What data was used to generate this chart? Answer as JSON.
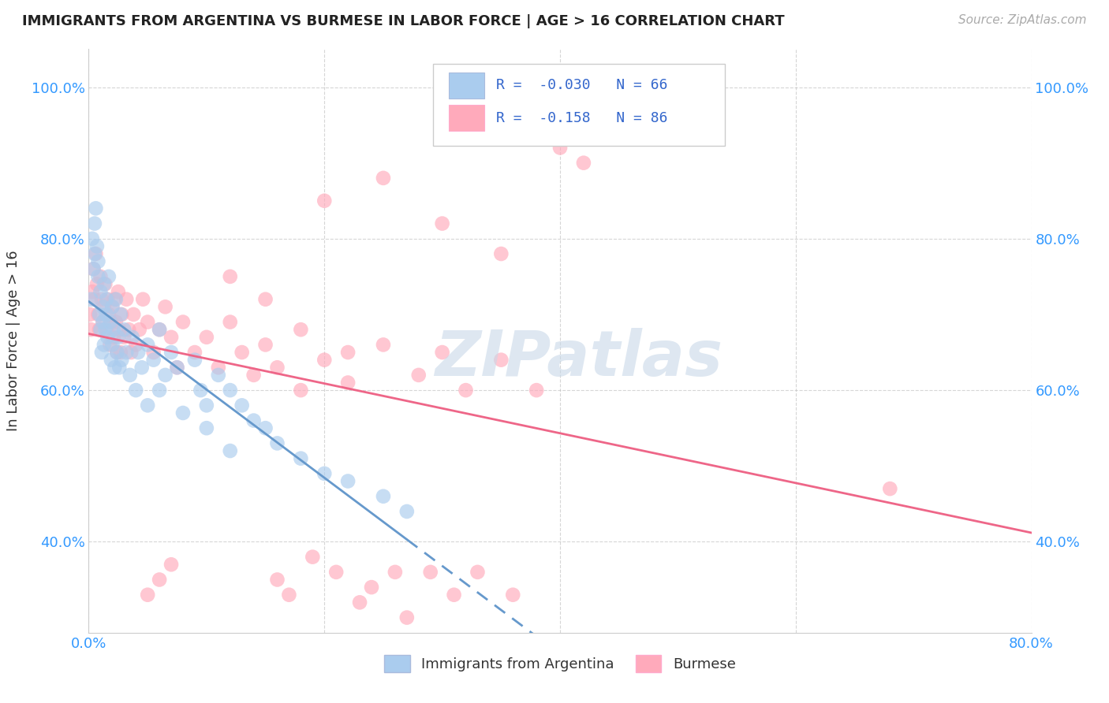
{
  "title": "IMMIGRANTS FROM ARGENTINA VS BURMESE IN LABOR FORCE | AGE > 16 CORRELATION CHART",
  "source": "Source: ZipAtlas.com",
  "ylabel": "In Labor Force | Age > 16",
  "watermark": "ZIPatlas",
  "legend1_label": "R =  -0.030   N = 66",
  "legend2_label": "R =  -0.158   N = 86",
  "legend_bottom1": "Immigrants from Argentina",
  "legend_bottom2": "Burmese",
  "xlim": [
    0.0,
    0.8
  ],
  "ylim": [
    0.28,
    1.05
  ],
  "xticks": [
    0.0,
    0.2,
    0.4,
    0.6,
    0.8
  ],
  "yticks": [
    0.4,
    0.6,
    0.8,
    1.0
  ],
  "xtick_labels": [
    "0.0%",
    "",
    "",
    "",
    "80.0%"
  ],
  "ytick_labels_left": [
    "40.0%",
    "60.0%",
    "80.0%",
    "100.0%"
  ],
  "ytick_labels_right": [
    "40.0%",
    "60.0%",
    "80.0%",
    "100.0%"
  ],
  "color_argentina": "#aaccee",
  "color_burmese": "#ffaabb",
  "line_color_argentina": "#6699cc",
  "line_color_burmese": "#ee6688",
  "background_color": "#ffffff",
  "grid_color": "#bbbbbb",
  "title_color": "#222222",
  "axis_label_color": "#333333",
  "tick_color": "#3399ff",
  "watermark_color": "#c8d8e8",
  "watermark_alpha": 0.6,
  "legend_box_color_argentina": "#aaccee",
  "legend_box_color_burmese": "#ffaabb",
  "legend_text_color": "#3366cc",
  "arg_x": [
    0.002,
    0.003,
    0.004,
    0.005,
    0.005,
    0.006,
    0.007,
    0.008,
    0.008,
    0.009,
    0.01,
    0.01,
    0.011,
    0.012,
    0.012,
    0.013,
    0.013,
    0.014,
    0.015,
    0.015,
    0.016,
    0.017,
    0.018,
    0.019,
    0.02,
    0.02,
    0.021,
    0.022,
    0.023,
    0.024,
    0.025,
    0.026,
    0.027,
    0.028,
    0.03,
    0.032,
    0.035,
    0.037,
    0.04,
    0.042,
    0.045,
    0.05,
    0.055,
    0.06,
    0.065,
    0.07,
    0.075,
    0.08,
    0.09,
    0.095,
    0.1,
    0.11,
    0.12,
    0.13,
    0.14,
    0.15,
    0.16,
    0.18,
    0.2,
    0.22,
    0.25,
    0.27,
    0.1,
    0.12,
    0.05,
    0.06
  ],
  "arg_y": [
    0.72,
    0.8,
    0.76,
    0.78,
    0.82,
    0.84,
    0.79,
    0.75,
    0.77,
    0.7,
    0.68,
    0.73,
    0.65,
    0.69,
    0.71,
    0.66,
    0.74,
    0.68,
    0.72,
    0.7,
    0.67,
    0.75,
    0.69,
    0.64,
    0.71,
    0.66,
    0.68,
    0.63,
    0.72,
    0.65,
    0.67,
    0.63,
    0.7,
    0.64,
    0.68,
    0.65,
    0.62,
    0.67,
    0.6,
    0.65,
    0.63,
    0.66,
    0.64,
    0.68,
    0.62,
    0.65,
    0.63,
    0.57,
    0.64,
    0.6,
    0.58,
    0.62,
    0.6,
    0.58,
    0.56,
    0.55,
    0.53,
    0.51,
    0.49,
    0.48,
    0.46,
    0.44,
    0.55,
    0.52,
    0.58,
    0.6
  ],
  "bur_x": [
    0.001,
    0.002,
    0.003,
    0.004,
    0.005,
    0.006,
    0.007,
    0.008,
    0.009,
    0.01,
    0.011,
    0.012,
    0.013,
    0.014,
    0.015,
    0.016,
    0.017,
    0.018,
    0.019,
    0.02,
    0.021,
    0.022,
    0.023,
    0.024,
    0.025,
    0.026,
    0.027,
    0.028,
    0.03,
    0.032,
    0.034,
    0.036,
    0.038,
    0.04,
    0.043,
    0.046,
    0.05,
    0.055,
    0.06,
    0.065,
    0.07,
    0.075,
    0.08,
    0.09,
    0.1,
    0.11,
    0.12,
    0.13,
    0.14,
    0.15,
    0.16,
    0.18,
    0.2,
    0.22,
    0.25,
    0.28,
    0.3,
    0.32,
    0.35,
    0.38,
    0.25,
    0.2,
    0.3,
    0.35,
    0.12,
    0.15,
    0.18,
    0.22,
    0.4,
    0.42,
    0.16,
    0.17,
    0.19,
    0.21,
    0.23,
    0.24,
    0.26,
    0.27,
    0.29,
    0.31,
    0.33,
    0.36,
    0.07,
    0.06,
    0.05,
    0.68
  ],
  "bur_y": [
    0.7,
    0.68,
    0.73,
    0.76,
    0.72,
    0.78,
    0.74,
    0.7,
    0.68,
    0.75,
    0.72,
    0.69,
    0.71,
    0.74,
    0.68,
    0.72,
    0.7,
    0.66,
    0.69,
    0.71,
    0.67,
    0.72,
    0.69,
    0.65,
    0.73,
    0.68,
    0.65,
    0.7,
    0.67,
    0.72,
    0.68,
    0.65,
    0.7,
    0.66,
    0.68,
    0.72,
    0.69,
    0.65,
    0.68,
    0.71,
    0.67,
    0.63,
    0.69,
    0.65,
    0.67,
    0.63,
    0.69,
    0.65,
    0.62,
    0.66,
    0.63,
    0.6,
    0.64,
    0.61,
    0.66,
    0.62,
    0.65,
    0.6,
    0.64,
    0.6,
    0.88,
    0.85,
    0.82,
    0.78,
    0.75,
    0.72,
    0.68,
    0.65,
    0.92,
    0.9,
    0.35,
    0.33,
    0.38,
    0.36,
    0.32,
    0.34,
    0.36,
    0.3,
    0.36,
    0.33,
    0.36,
    0.33,
    0.37,
    0.35,
    0.33,
    0.47
  ]
}
